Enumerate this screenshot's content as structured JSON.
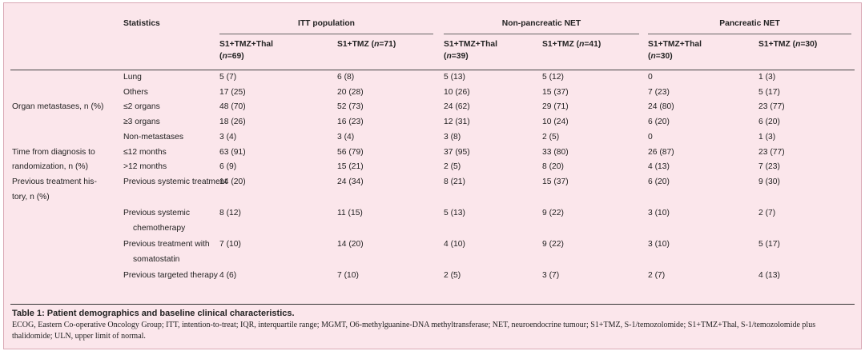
{
  "header": {
    "stub": "Statistics",
    "groups": [
      "ITT population",
      "Non-pancreatic NET",
      "Pancreatic NET"
    ],
    "subcolumns": [
      "S1+TMZ+Thal (n=69)",
      "S1+TMZ (n=71)",
      "S1+TMZ+Thal (n=39)",
      "S1+TMZ (n=41)",
      "S1+TMZ+Thal (n=30)",
      "S1+TMZ (n=30)"
    ]
  },
  "table": {
    "rows": [
      {
        "label": "Lung",
        "cells": [
          "5 (7)",
          "6 (8)",
          "5 (13)",
          "5 (12)",
          "0",
          "1 (3)"
        ]
      },
      {
        "label": "Others",
        "cells": [
          "17 (25)",
          "20 (28)",
          "10 (26)",
          "15 (37)",
          "7 (23)",
          "5 (17)"
        ]
      },
      {
        "group": "Organ metastases, n (%)",
        "label": "≤2 organs",
        "cells": [
          "48 (70)",
          "52 (73)",
          "24 (62)",
          "29 (71)",
          "24 (80)",
          "23 (77)"
        ]
      },
      {
        "label": "≥3 organs",
        "cells": [
          "18 (26)",
          "16 (23)",
          "12 (31)",
          "10 (24)",
          "6 (20)",
          "6 (20)"
        ]
      },
      {
        "label": "Non-metastases",
        "cells": [
          "3 (4)",
          "3 (4)",
          "3 (8)",
          "2 (5)",
          "0",
          "1 (3)"
        ]
      },
      {
        "group": "Time from diagnosis to randomization, n (%)",
        "label": "≤12 months",
        "cells": [
          "63 (91)",
          "56 (79)",
          "37 (95)",
          "33 (80)",
          "26 (87)",
          "23 (77)"
        ]
      },
      {
        "label": ">12 months",
        "cells": [
          "6 (9)",
          "15 (21)",
          "2 (5)",
          "8 (20)",
          "4 (13)",
          "7 (23)"
        ]
      },
      {
        "group": "Previous treatment his­tory, n (%)",
        "label": "Previous systemic treatment",
        "cells": [
          "14 (20)",
          "24 (34)",
          "8 (21)",
          "15 (37)",
          "6 (20)",
          "9 (30)"
        ]
      },
      {
        "label": "Previous systemic chemotherapy",
        "cells": [
          "8 (12)",
          "11 (15)",
          "5 (13)",
          "9 (22)",
          "3 (10)",
          "2 (7)"
        ]
      },
      {
        "label": "Previous treatment with somatostatin",
        "cells": [
          "7 (10)",
          "14 (20)",
          "4 (10)",
          "9 (22)",
          "3 (10)",
          "5 (17)"
        ]
      },
      {
        "label": "Previous targeted therapy",
        "cells": [
          "4 (6)",
          "7 (10)",
          "2 (5)",
          "3 (7)",
          "2 (7)",
          "4 (13)"
        ]
      }
    ]
  },
  "caption": {
    "title": "Table 1: Patient demographics and baseline clinical characteristics.",
    "note": "ECOG, Eastern Co-operative Oncology Group; ITT, intention-to-treat; IQR, interquartile range; MGMT, O6-methylguanine-DNA methyltransferase; NET, neuroendocrine tumour; S1+TMZ, S-1/temozolomide; S1+TMZ+Thal, S-1/temozolomide plus thalidomide; ULN, upper limit of normal."
  }
}
